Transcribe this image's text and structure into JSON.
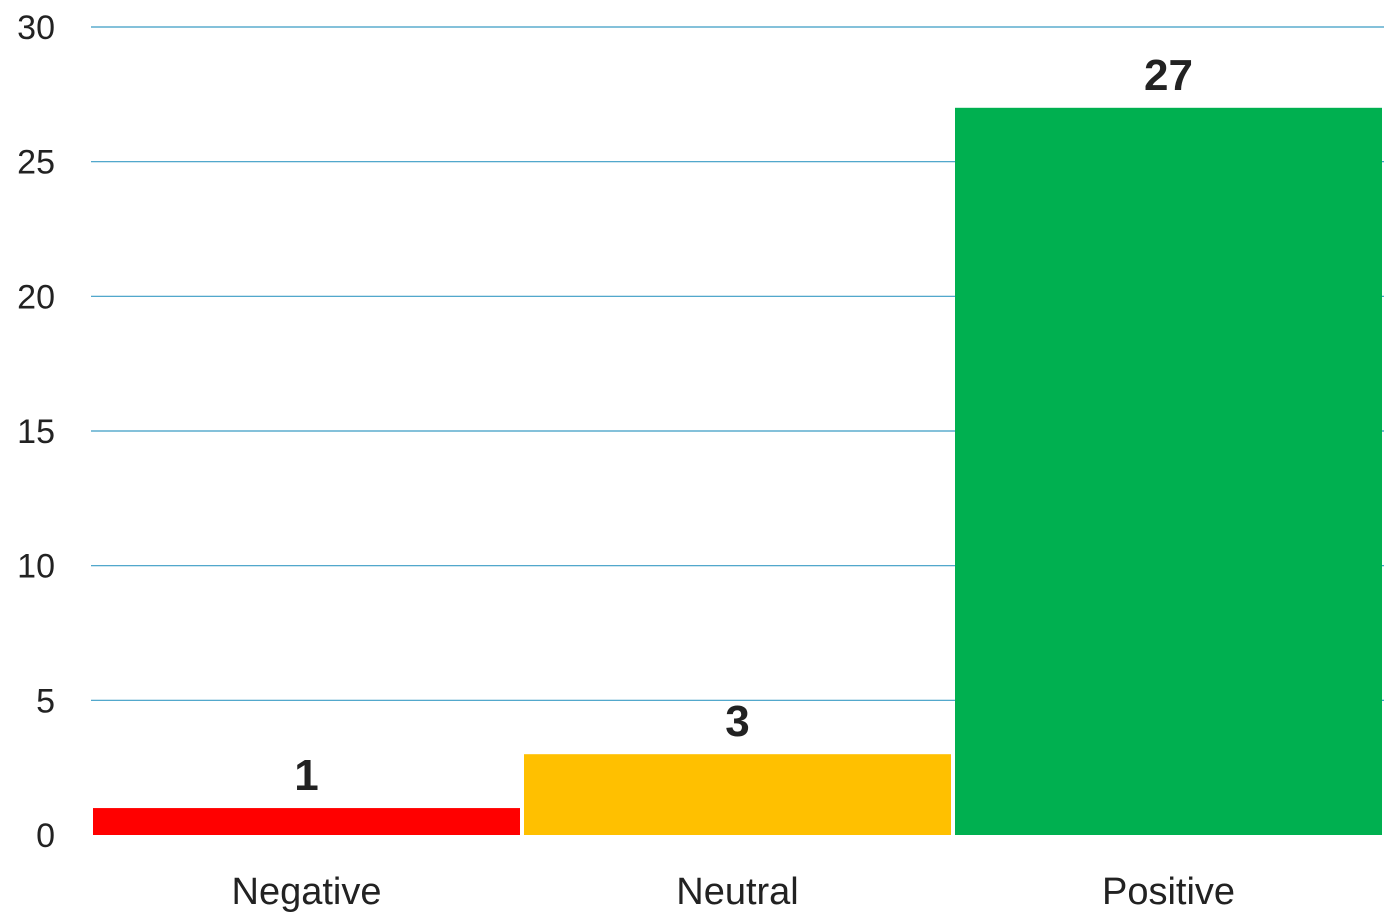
{
  "chart_data": {
    "type": "bar",
    "categories": [
      "Negative",
      "Neutral",
      "Positive"
    ],
    "values": [
      1,
      3,
      27
    ],
    "data_labels": [
      "1",
      "3",
      "27"
    ],
    "colors": [
      "#ff0000",
      "#ffc000",
      "#00b050"
    ],
    "gridline_color": "#3a9cc4",
    "title": "",
    "xlabel": "",
    "ylabel": "",
    "ylim": [
      0,
      30
    ],
    "yticks": [
      0,
      5,
      10,
      15,
      20,
      25,
      30
    ],
    "ytick_labels": [
      "0",
      "5",
      "10",
      "15",
      "20",
      "25",
      "30"
    ],
    "grid": true,
    "legend": "none"
  }
}
